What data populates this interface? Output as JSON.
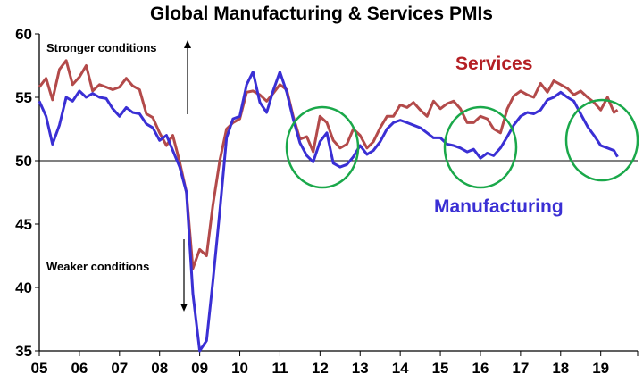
{
  "chart_data": {
    "type": "line",
    "title": "Global Manufacturing & Services PMIs",
    "xlabel": "",
    "ylabel": "",
    "xlim": [
      2005.0,
      2019.92
    ],
    "ylim": [
      35,
      60
    ],
    "yticks": [
      35,
      40,
      45,
      50,
      55,
      60
    ],
    "xticks": [
      "05",
      "06",
      "07",
      "08",
      "09",
      "10",
      "11",
      "12",
      "13",
      "14",
      "15",
      "16",
      "17",
      "18",
      "19"
    ],
    "reference_line": 50,
    "grid": false,
    "annotations": {
      "stronger": "Stronger conditions",
      "weaker": "Weaker conditions"
    },
    "highlight_circles": 3,
    "series": [
      {
        "name": "Services",
        "color": "#b34a4a",
        "label_color": "#b41f24",
        "x": [
          2005.0,
          2005.17,
          2005.33,
          2005.5,
          2005.67,
          2005.83,
          2006.0,
          2006.17,
          2006.33,
          2006.5,
          2006.67,
          2006.83,
          2007.0,
          2007.17,
          2007.33,
          2007.5,
          2007.67,
          2007.83,
          2008.0,
          2008.17,
          2008.33,
          2008.5,
          2008.67,
          2008.83,
          2009.0,
          2009.17,
          2009.33,
          2009.5,
          2009.67,
          2009.83,
          2010.0,
          2010.17,
          2010.33,
          2010.5,
          2010.67,
          2010.83,
          2011.0,
          2011.17,
          2011.33,
          2011.5,
          2011.67,
          2011.83,
          2012.0,
          2012.17,
          2012.33,
          2012.5,
          2012.67,
          2012.83,
          2013.0,
          2013.17,
          2013.33,
          2013.5,
          2013.67,
          2013.83,
          2014.0,
          2014.17,
          2014.33,
          2014.5,
          2014.67,
          2014.83,
          2015.0,
          2015.17,
          2015.33,
          2015.5,
          2015.67,
          2015.83,
          2016.0,
          2016.17,
          2016.33,
          2016.5,
          2016.67,
          2016.83,
          2017.0,
          2017.17,
          2017.33,
          2017.5,
          2017.67,
          2017.83,
          2018.0,
          2018.17,
          2018.33,
          2018.5,
          2018.67,
          2018.83,
          2019.0,
          2019.17,
          2019.33,
          2019.42
        ],
        "y": [
          55.8,
          56.5,
          54.8,
          57.2,
          57.9,
          56.0,
          56.6,
          57.5,
          55.5,
          56.0,
          55.8,
          55.6,
          55.8,
          56.5,
          55.9,
          55.6,
          53.7,
          53.4,
          52.2,
          51.2,
          52.0,
          49.9,
          47.5,
          41.5,
          43.0,
          42.5,
          46.5,
          50.0,
          52.5,
          53.0,
          53.3,
          55.4,
          55.5,
          55.2,
          54.7,
          55.3,
          56.0,
          55.6,
          53.5,
          51.7,
          51.9,
          50.7,
          53.5,
          53.0,
          51.6,
          51.0,
          51.3,
          52.5,
          52.0,
          51.0,
          51.5,
          52.6,
          53.5,
          53.5,
          54.4,
          54.2,
          54.6,
          54.0,
          53.5,
          54.7,
          54.1,
          54.5,
          54.7,
          54.1,
          53.0,
          53.0,
          53.5,
          53.3,
          52.5,
          52.2,
          54.1,
          55.1,
          55.5,
          55.2,
          55.0,
          56.1,
          55.4,
          56.3,
          56.0,
          55.7,
          55.2,
          55.5,
          55.0,
          54.6,
          54.0,
          55.0,
          53.8,
          54.0
        ]
      },
      {
        "name": "Manufacturing",
        "color": "#3a2fd4",
        "label_color": "#3a2fd4",
        "x": [
          2005.0,
          2005.17,
          2005.33,
          2005.5,
          2005.67,
          2005.83,
          2006.0,
          2006.17,
          2006.33,
          2006.5,
          2006.67,
          2006.83,
          2007.0,
          2007.17,
          2007.33,
          2007.5,
          2007.67,
          2007.83,
          2008.0,
          2008.17,
          2008.33,
          2008.5,
          2008.67,
          2008.83,
          2009.0,
          2009.17,
          2009.33,
          2009.5,
          2009.67,
          2009.83,
          2010.0,
          2010.17,
          2010.33,
          2010.5,
          2010.67,
          2010.83,
          2011.0,
          2011.17,
          2011.33,
          2011.5,
          2011.67,
          2011.83,
          2012.0,
          2012.17,
          2012.33,
          2012.5,
          2012.67,
          2012.83,
          2013.0,
          2013.17,
          2013.33,
          2013.5,
          2013.67,
          2013.83,
          2014.0,
          2014.17,
          2014.33,
          2014.5,
          2014.67,
          2014.83,
          2015.0,
          2015.17,
          2015.33,
          2015.5,
          2015.67,
          2015.83,
          2016.0,
          2016.17,
          2016.33,
          2016.5,
          2016.67,
          2016.83,
          2017.0,
          2017.17,
          2017.33,
          2017.5,
          2017.67,
          2017.83,
          2018.0,
          2018.17,
          2018.33,
          2018.5,
          2018.67,
          2018.83,
          2019.0,
          2019.17,
          2019.33,
          2019.42
        ],
        "y": [
          54.7,
          53.5,
          51.3,
          52.8,
          55.0,
          54.7,
          55.5,
          55.0,
          55.3,
          55.0,
          54.9,
          54.1,
          53.5,
          54.2,
          53.8,
          53.7,
          52.9,
          52.6,
          51.6,
          52.0,
          50.8,
          49.5,
          47.5,
          39.5,
          35.0,
          35.8,
          40.5,
          46.0,
          51.8,
          53.3,
          53.5,
          56.0,
          57.0,
          54.6,
          53.8,
          55.5,
          57.0,
          55.4,
          53.3,
          51.4,
          50.4,
          49.9,
          51.5,
          52.2,
          49.8,
          49.5,
          49.7,
          50.3,
          51.2,
          50.5,
          50.8,
          51.5,
          52.5,
          53.0,
          53.2,
          53.0,
          52.8,
          52.6,
          52.2,
          51.8,
          51.8,
          51.3,
          51.2,
          51.0,
          50.7,
          50.9,
          50.2,
          50.6,
          50.4,
          51.0,
          51.9,
          52.8,
          53.5,
          53.8,
          53.7,
          54.0,
          54.8,
          55.0,
          55.4,
          55.0,
          54.7,
          53.7,
          52.7,
          52.0,
          51.2,
          51.0,
          50.8,
          50.3
        ]
      }
    ]
  }
}
